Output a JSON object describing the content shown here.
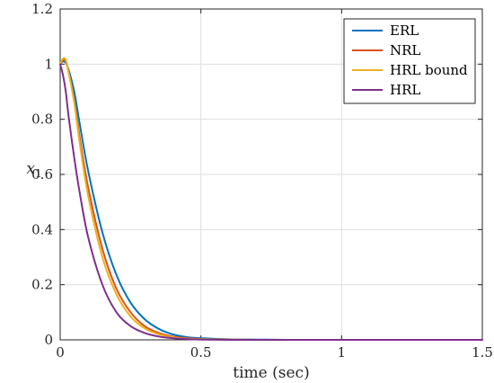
{
  "chart_data": {
    "type": "line",
    "title": "",
    "xlabel": "time (sec)",
    "ylabel_main": "x",
    "ylabel_sub": "1",
    "xlim": [
      0,
      1.5
    ],
    "ylim": [
      0,
      1.2
    ],
    "xticks": [
      0,
      0.5,
      1,
      1.5
    ],
    "xtick_labels": [
      "0",
      "0.5",
      "1",
      "1.5"
    ],
    "yticks": [
      0,
      0.2,
      0.4,
      0.6,
      0.8,
      1,
      1.2
    ],
    "ytick_labels": [
      "0",
      "0.2",
      "0.4",
      "0.6",
      "0.8",
      "1",
      "1.2"
    ],
    "grid": true,
    "legend_position": "top-right",
    "x": [
      0,
      0.01,
      0.02,
      0.03,
      0.05,
      0.07,
      0.1,
      0.15,
      0.2,
      0.25,
      0.3,
      0.35,
      0.4,
      0.45,
      0.5,
      0.6,
      0.7,
      0.8,
      1,
      1.5
    ],
    "series": [
      {
        "name": "ERL",
        "color": "#0072BD",
        "values": [
          1,
          1.01,
          1.005,
          0.98,
          0.9,
          0.78,
          0.61,
          0.39,
          0.235,
          0.135,
          0.075,
          0.04,
          0.02,
          0.01,
          0.006,
          0.002,
          0.001,
          0,
          0,
          0
        ]
      },
      {
        "name": "NRL",
        "color": "#D95319",
        "values": [
          1,
          1.015,
          1.01,
          0.97,
          0.87,
          0.73,
          0.55,
          0.33,
          0.185,
          0.1,
          0.05,
          0.025,
          0.012,
          0.006,
          0.003,
          0.001,
          0,
          0,
          0,
          0
        ]
      },
      {
        "name": "HRL bound",
        "color": "#EDB120",
        "values": [
          1,
          1.02,
          1.015,
          0.97,
          0.86,
          0.71,
          0.52,
          0.3,
          0.165,
          0.085,
          0.042,
          0.02,
          0.009,
          0.004,
          0.002,
          0.001,
          0,
          0,
          0,
          0
        ]
      },
      {
        "name": "HRL",
        "color": "#7E2F8E",
        "values": [
          1,
          0.96,
          0.9,
          0.81,
          0.66,
          0.53,
          0.37,
          0.2,
          0.1,
          0.05,
          0.025,
          0.012,
          0.006,
          0.003,
          0.001,
          0,
          0,
          0,
          0,
          0
        ]
      }
    ]
  }
}
